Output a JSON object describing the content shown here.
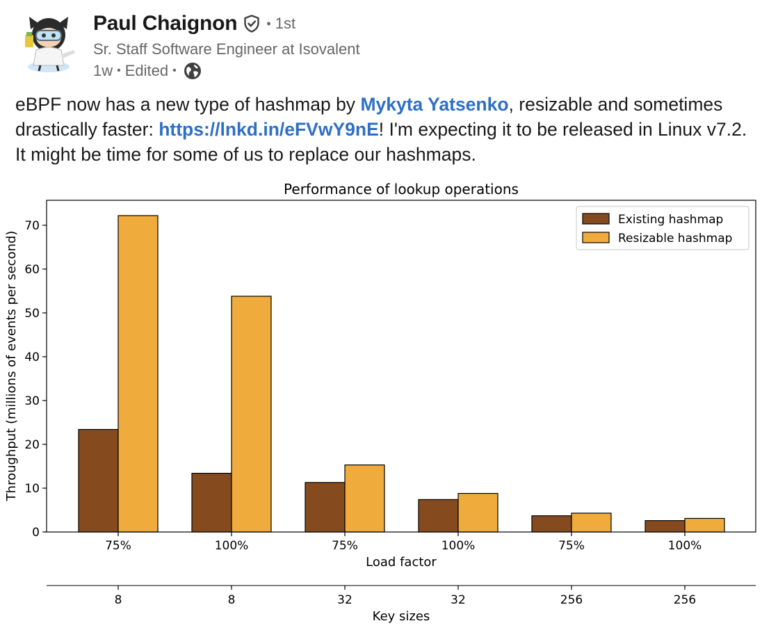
{
  "post": {
    "author": {
      "name": "Paul Chaignon",
      "degree": "1st",
      "headline": "Sr. Staff Software Engineer at Isovalent"
    },
    "meta": {
      "age": "1w",
      "edited": "Edited"
    },
    "text": {
      "part1": "eBPF now has a new type of hashmap by ",
      "mention": "Mykyta Yatsenko",
      "part2": ", resizable and sometimes drastically faster: ",
      "link": "https://lnkd.in/eFVwY9nE",
      "part3": "! I'm expecting it to be released in Linux v7.2. It might be time for some of us to replace our hashmaps."
    }
  },
  "chart_data": {
    "type": "bar",
    "title": "Performance of lookup operations",
    "xlabel": "Load factor",
    "secondary_xlabel": "Key sizes",
    "ylabel": "Throughput (millions of events per second)",
    "categories": [
      "75%",
      "100%",
      "75%",
      "100%",
      "75%",
      "100%"
    ],
    "secondary_categories": [
      "8",
      "8",
      "32",
      "32",
      "256",
      "256"
    ],
    "series": [
      {
        "name": "Existing hashmap",
        "color": "#854b1f",
        "values": [
          23.4,
          13.4,
          11.3,
          7.4,
          3.7,
          2.6
        ]
      },
      {
        "name": "Resizable hashmap",
        "color": "#f0ab3d",
        "values": [
          72.2,
          53.8,
          15.3,
          8.8,
          4.3,
          3.1
        ]
      }
    ],
    "ylim": [
      0,
      75.7
    ],
    "yticks": [
      0,
      10,
      20,
      30,
      40,
      50,
      60,
      70
    ],
    "grid": false,
    "legend": "top-right"
  }
}
